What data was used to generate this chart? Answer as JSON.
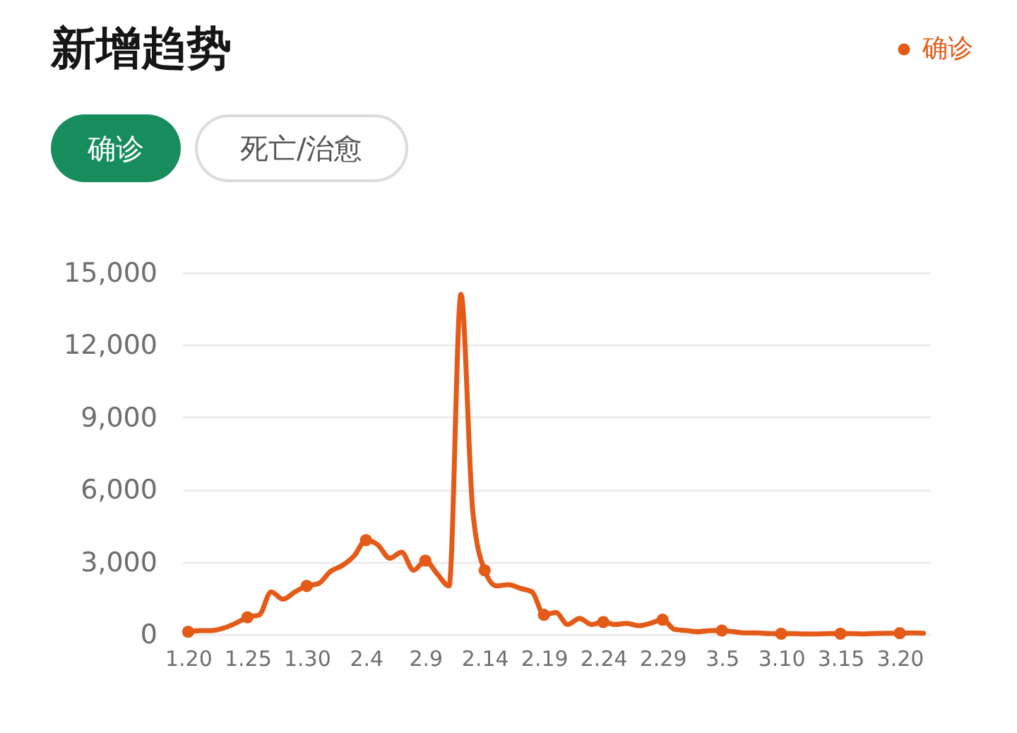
{
  "chart_data": {
    "type": "line",
    "title": "新增趋势",
    "annotations": [
      "确诊",
      "死亡/治愈"
    ],
    "categories": [
      "1.20",
      null,
      null,
      null,
      null,
      "1.25",
      null,
      null,
      null,
      null,
      "1.30",
      null,
      null,
      null,
      null,
      "2.4",
      null,
      null,
      null,
      null,
      "2.9",
      null,
      null,
      null,
      null,
      "2.14",
      null,
      null,
      null,
      null,
      "2.19",
      null,
      null,
      null,
      null,
      "2.24",
      null,
      null,
      null,
      null,
      "2.29",
      null,
      null,
      null,
      null,
      "3.5",
      null,
      null,
      null,
      null,
      "3.10",
      null,
      null,
      null,
      null,
      "3.15",
      null,
      null,
      null,
      null,
      "3.20",
      null,
      null
    ],
    "series": [
      {
        "name": "确诊",
        "color": "#e45a17",
        "values": [
          100,
          150,
          150,
          250,
          450,
          700,
          800,
          1750,
          1450,
          1750,
          2000,
          2100,
          2600,
          2850,
          3250,
          3900,
          3700,
          3150,
          3400,
          2650,
          3050,
          2500,
          2000,
          14100,
          5100,
          2650,
          2000,
          2050,
          1900,
          1750,
          800,
          900,
          400,
          650,
          400,
          500,
          400,
          450,
          350,
          450,
          600,
          200,
          150,
          100,
          150,
          150,
          100,
          50,
          50,
          20,
          20,
          20,
          10,
          10,
          20,
          20,
          20,
          10,
          30,
          40,
          40,
          50,
          40
        ]
      },
      {
        "type": "scatter",
        "color": "#e45a17",
        "marker": "circle",
        "values": [
          100,
          null,
          null,
          null,
          null,
          700,
          null,
          null,
          null,
          null,
          2000,
          null,
          null,
          null,
          null,
          3900,
          null,
          null,
          null,
          null,
          3050,
          null,
          null,
          null,
          null,
          2650,
          null,
          null,
          null,
          null,
          800,
          null,
          null,
          null,
          null,
          500,
          null,
          null,
          null,
          null,
          600,
          null,
          null,
          null,
          null,
          150,
          null,
          null,
          null,
          null,
          20,
          null,
          null,
          null,
          null,
          20,
          null,
          null,
          null,
          null,
          40,
          null,
          null
        ]
      }
    ],
    "ylim": [
      0,
      15000
    ],
    "yticks": [
      0,
      {
        "value": 3000,
        "label": "3,000"
      },
      {
        "value": 6000,
        "label": "6,000"
      },
      {
        "value": 9000,
        "label": "9,000"
      },
      {
        "value": 12000,
        "label": "12,000"
      },
      {
        "value": 15000,
        "label": "15,000"
      }
    ],
    "grid": "y",
    "legend": "top right",
    "line_style": "solid"
  }
}
